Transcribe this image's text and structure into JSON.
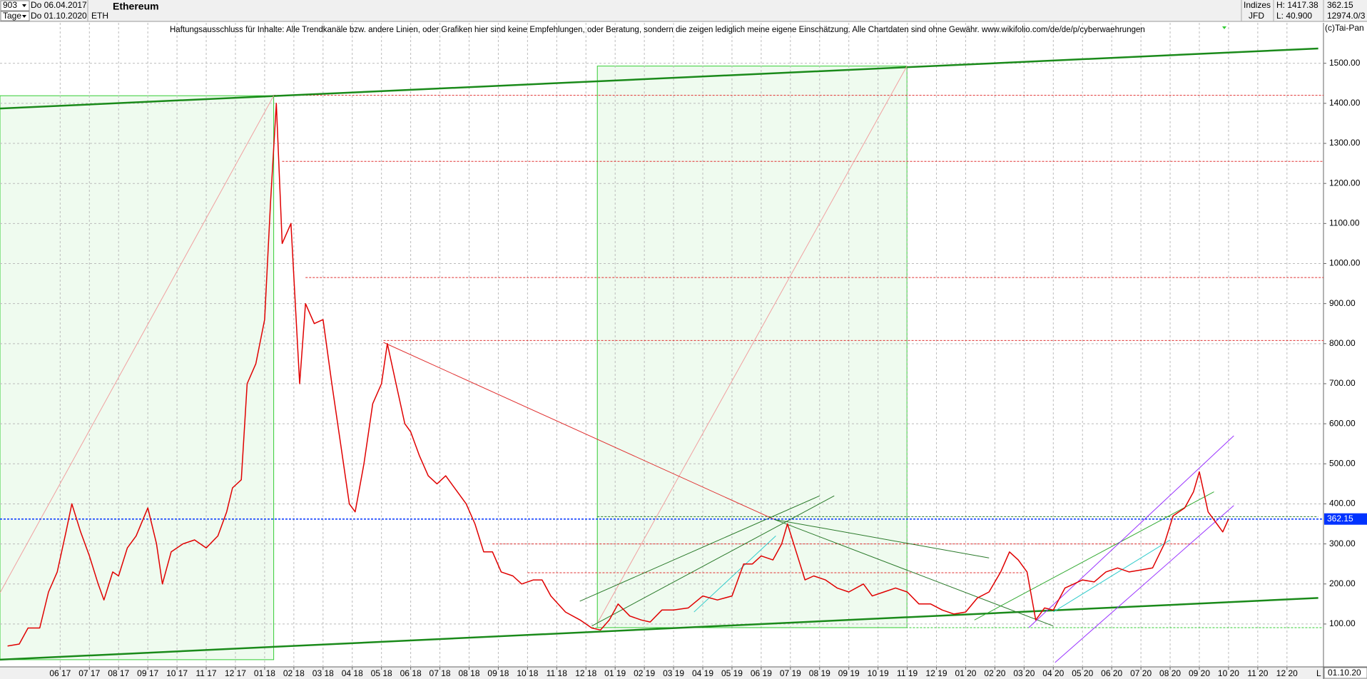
{
  "header": {
    "period": "903",
    "unit": "Tage",
    "start_date": "Do 06.04.2017",
    "end_date": "Do 01.10.2020",
    "symbol": "ETH",
    "market": "Indizes",
    "exchange": "JFD",
    "high": "H: 1417.38",
    "low": "L: 40.900",
    "last": "362.15",
    "volume": "12974.0/3"
  },
  "chart_data": {
    "type": "line",
    "title": "Ethereum",
    "subtitle": "Haftungsausschluss für Inhalte: Alle Trendkanäle bzw. andere Linien, oder Grafiken hier sind keine Empfehlungen, oder Beratung, sondern die zeigen lediglich meine eigene Einschätzung. Alle Chartdaten sind ohne Gewähr.  www.wikifolio.com/de/de/p/cyberwaehrungen",
    "source": "(c)Tai-Pan",
    "scale_mode": "L",
    "date_label": "01.10.20",
    "color": "#e00000",
    "x": [
      4.2,
      4.6,
      4.9,
      5.3,
      5.6,
      5.9,
      6.2,
      6.4,
      6.7,
      7.0,
      7.3,
      7.5,
      7.8,
      8.0,
      8.3,
      8.6,
      9.0,
      9.3,
      9.5,
      9.8,
      10.2,
      10.6,
      11.0,
      11.4,
      11.7,
      11.9,
      12.2,
      12.4,
      12.7,
      13.0,
      13.2,
      13.4,
      13.6,
      13.9,
      14.2,
      14.4,
      14.7,
      15.0,
      15.3,
      15.6,
      15.9,
      16.1,
      16.4,
      16.7,
      17.0,
      17.2,
      17.5,
      17.8,
      18.0,
      18.3,
      18.6,
      18.9,
      19.2,
      19.6,
      19.9,
      20.2,
      20.5,
      20.8,
      21.1,
      21.5,
      21.8,
      22.2,
      22.5,
      22.8,
      23.3,
      23.8,
      24.2,
      24.5,
      24.8,
      25.1,
      25.5,
      25.9,
      26.2,
      26.6,
      27.0,
      27.5,
      28.0,
      28.5,
      29.0,
      29.4,
      29.7,
      30.0,
      30.4,
      30.7,
      30.9,
      31.2,
      31.5,
      31.8,
      32.2,
      32.6,
      33.0,
      33.5,
      33.8,
      34.2,
      34.6,
      35.0,
      35.4,
      35.8,
      36.2,
      36.6,
      37.0,
      37.4,
      37.8,
      38.2,
      38.5,
      38.8,
      39.1,
      39.4,
      39.7,
      40.0,
      40.4,
      40.7,
      41.0,
      41.4,
      41.8,
      42.2,
      42.6,
      43.0,
      43.4,
      43.8,
      44.1,
      44.5,
      44.8,
      45.0,
      45.3,
      45.6,
      45.8,
      46.0
    ],
    "values": [
      45,
      50,
      90,
      90,
      180,
      230,
      330,
      400,
      330,
      270,
      200,
      160,
      230,
      220,
      290,
      320,
      390,
      300,
      200,
      280,
      300,
      310,
      290,
      320,
      380,
      440,
      460,
      700,
      750,
      860,
      1150,
      1400,
      1050,
      1100,
      700,
      900,
      850,
      860,
      700,
      550,
      400,
      380,
      500,
      650,
      700,
      800,
      700,
      600,
      580,
      520,
      470,
      450,
      470,
      430,
      400,
      350,
      280,
      280,
      230,
      220,
      200,
      210,
      210,
      170,
      130,
      110,
      90,
      85,
      110,
      150,
      120,
      110,
      105,
      135,
      135,
      140,
      170,
      160,
      170,
      250,
      250,
      270,
      260,
      300,
      350,
      280,
      210,
      220,
      210,
      190,
      180,
      200,
      170,
      180,
      190,
      180,
      150,
      150,
      135,
      125,
      130,
      165,
      180,
      230,
      280,
      260,
      230,
      110,
      140,
      135,
      190,
      200,
      210,
      205,
      230,
      240,
      230,
      235,
      240,
      300,
      370,
      390,
      430,
      480,
      380,
      350,
      330,
      362.15
    ],
    "last_value": 362.15,
    "last_color": "#0033ff",
    "xlim": [
      3.94,
      49.25
    ],
    "ylim": [
      -7,
      1601
    ],
    "grid": true,
    "yticks": [
      {
        "value": 100,
        "label": "100.00"
      },
      {
        "value": 200,
        "label": "200.00"
      },
      {
        "value": 300,
        "label": "300.00"
      },
      {
        "value": 400,
        "label": "400.00"
      },
      {
        "value": 500,
        "label": "500.00"
      },
      {
        "value": 600,
        "label": "600.00"
      },
      {
        "value": 700,
        "label": "700.00"
      },
      {
        "value": 800,
        "label": "800.00"
      },
      {
        "value": 900,
        "label": "900.00"
      },
      {
        "value": 1000,
        "label": "1000.00"
      },
      {
        "value": 1100,
        "label": "1100.00"
      },
      {
        "value": 1200,
        "label": "1200.00"
      },
      {
        "value": 1300,
        "label": "1300.00"
      },
      {
        "value": 1400,
        "label": "1400.00"
      },
      {
        "value": 1500,
        "label": "1500.00"
      }
    ],
    "xticks": [
      {
        "value": 6,
        "label": "06 17"
      },
      {
        "value": 7,
        "label": "07 17"
      },
      {
        "value": 8,
        "label": "08 17"
      },
      {
        "value": 9,
        "label": "09 17"
      },
      {
        "value": 10,
        "label": "10 17"
      },
      {
        "value": 11,
        "label": "11 17"
      },
      {
        "value": 12,
        "label": "12 17"
      },
      {
        "value": 13,
        "label": "01 18"
      },
      {
        "value": 14,
        "label": "02 18"
      },
      {
        "value": 15,
        "label": "03 18"
      },
      {
        "value": 16,
        "label": "04 18"
      },
      {
        "value": 17,
        "label": "05 18"
      },
      {
        "value": 18,
        "label": "06 18"
      },
      {
        "value": 19,
        "label": "07 18"
      },
      {
        "value": 20,
        "label": "08 18"
      },
      {
        "value": 21,
        "label": "09 18"
      },
      {
        "value": 22,
        "label": "10 18"
      },
      {
        "value": 23,
        "label": "11 18"
      },
      {
        "value": 24,
        "label": "12 18"
      },
      {
        "value": 25,
        "label": "01 19"
      },
      {
        "value": 26,
        "label": "02 19"
      },
      {
        "value": 27,
        "label": "03 19"
      },
      {
        "value": 28,
        "label": "04 19"
      },
      {
        "value": 29,
        "label": "05 19"
      },
      {
        "value": 30,
        "label": "06 19"
      },
      {
        "value": 31,
        "label": "07 19"
      },
      {
        "value": 32,
        "label": "08 19"
      },
      {
        "value": 33,
        "label": "09 19"
      },
      {
        "value": 34,
        "label": "10 19"
      },
      {
        "value": 35,
        "label": "11 19"
      },
      {
        "value": 36,
        "label": "12 19"
      },
      {
        "value": 37,
        "label": "01 20"
      },
      {
        "value": 38,
        "label": "02 20"
      },
      {
        "value": 39,
        "label": "03 20"
      },
      {
        "value": 40,
        "label": "04 20"
      },
      {
        "value": 41,
        "label": "05 20"
      },
      {
        "value": 42,
        "label": "06 20"
      },
      {
        "value": 43,
        "label": "07 20"
      },
      {
        "value": 44,
        "label": "08 20"
      },
      {
        "value": 45,
        "label": "09 20"
      },
      {
        "value": 46,
        "label": "10 20"
      },
      {
        "value": 47,
        "label": "11 20"
      },
      {
        "value": 48,
        "label": "12 20"
      }
    ],
    "zones": [
      {
        "x": [
          3.94,
          13.31
        ],
        "y": [
          11,
          1419
        ],
        "color": "#33cc33"
      },
      {
        "x": [
          24.39,
          34.99
        ],
        "y": [
          91,
          1493
        ],
        "color": "#33cc33"
      }
    ],
    "levels": [
      {
        "value": 1420,
        "from": 13.31,
        "to": 49.25,
        "color": "#e03030"
      },
      {
        "value": 1255,
        "from": 13.6,
        "to": 49.25,
        "color": "#e03030"
      },
      {
        "value": 965,
        "from": 14.4,
        "to": 49.25,
        "color": "#e03030"
      },
      {
        "value": 808,
        "from": 17.07,
        "to": 49.25,
        "color": "#e03030"
      },
      {
        "value": 300,
        "from": 20.8,
        "to": 45.0,
        "color": "#e03030"
      },
      {
        "value": 228,
        "from": 22.0,
        "to": 39.0,
        "color": "#e03030"
      },
      {
        "value": 91,
        "from": 24.2,
        "to": 49.25,
        "color": "#33cc33"
      },
      {
        "value": 368,
        "from": 24.39,
        "to": 49.07,
        "color": "#2a7a2a"
      }
    ],
    "lines": [
      {
        "x": [
          3.94,
          49.07
        ],
        "y": [
          1387,
          1537
        ],
        "color": "#1a8a1a",
        "width": 2.5
      },
      {
        "x": [
          3.94,
          49.07
        ],
        "y": [
          11,
          165
        ],
        "color": "#1a8a1a",
        "width": 2.5
      },
      {
        "x": [
          3.94,
          13.31
        ],
        "y": [
          178,
          1419
        ],
        "color": "#f0a0a0",
        "width": 1
      },
      {
        "x": [
          24.39,
          34.99
        ],
        "y": [
          102,
          1493
        ],
        "color": "#f0a0a0",
        "width": 1
      },
      {
        "x": [
          17.07,
          30.45
        ],
        "y": [
          803,
          361
        ],
        "color": "#e03030",
        "width": 1
      },
      {
        "x": [
          30.45,
          37.8
        ],
        "y": [
          361,
          265
        ],
        "color": "#2a7a2a",
        "width": 1
      },
      {
        "x": [
          23.79,
          32.0
        ],
        "y": [
          157,
          420
        ],
        "color": "#2a7a2a",
        "width": 1
      },
      {
        "x": [
          24.2,
          32.5
        ],
        "y": [
          95,
          420
        ],
        "color": "#2a7a2a",
        "width": 1
      },
      {
        "x": [
          30.45,
          40.0
        ],
        "y": [
          361,
          95
        ],
        "color": "#2a7a2a",
        "width": 1
      },
      {
        "x": [
          27.7,
          30.5
        ],
        "y": [
          130,
          320
        ],
        "color": "#33cccc",
        "width": 1
      },
      {
        "x": [
          40.0,
          44.0
        ],
        "y": [
          130,
          310
        ],
        "color": "#33cccc",
        "width": 1
      },
      {
        "x": [
          37.3,
          45.5
        ],
        "y": [
          110,
          430
        ],
        "color": "#33aa33",
        "width": 1
      },
      {
        "x": [
          39.16,
          46.18
        ],
        "y": [
          91,
          570
        ],
        "color": "#9933ff",
        "width": 1
      },
      {
        "x": [
          40.06,
          46.18
        ],
        "y": [
          4,
          396
        ],
        "color": "#9933ff",
        "width": 1
      }
    ]
  }
}
